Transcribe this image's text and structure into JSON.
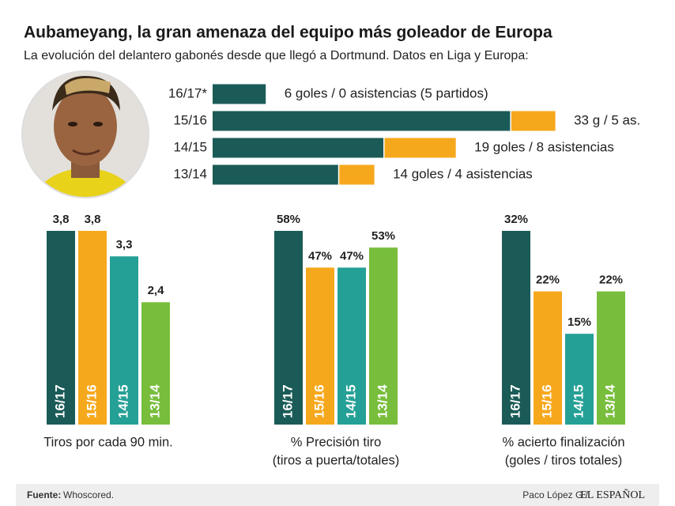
{
  "header": {
    "title": "Aubameyang, la gran amenaza del equipo más goleador de Europa",
    "subtitle": "La evolución del delantero gabonés desde que llegó a Dortmund. Datos en Liga y Europa:"
  },
  "chart_data": [
    {
      "type": "bar-stacked-horizontal",
      "categories": [
        "16/17*",
        "15/16",
        "14/15",
        "13/14"
      ],
      "series": [
        {
          "name": "goles",
          "color": "#1b5b57",
          "values": [
            6,
            33,
            19,
            14
          ]
        },
        {
          "name": "asistencias",
          "color": "#f6a81c",
          "values": [
            0,
            5,
            8,
            4
          ]
        }
      ],
      "value_labels": [
        "6 goles / 0 asistencias (5 partidos)",
        "33 g / 5 as.",
        "19 goles / 8 asistencias",
        "14 goles / 4 asistencias"
      ]
    },
    {
      "type": "bar",
      "label": [
        "Tiros por cada 90 min."
      ],
      "categories": [
        "16/17",
        "15/16",
        "14/15",
        "13/14"
      ],
      "colors": [
        "#1b5b57",
        "#f6a81c",
        "#25a096",
        "#78be3c"
      ],
      "values": [
        3.8,
        3.8,
        3.3,
        2.4
      ],
      "value_labels": [
        "3,8",
        "3,8",
        "3,3",
        "2,4"
      ]
    },
    {
      "type": "bar",
      "label": [
        "% Precisión tiro",
        "(tiros a puerta/totales)"
      ],
      "categories": [
        "16/17",
        "15/16",
        "14/15",
        "13/14"
      ],
      "colors": [
        "#1b5b57",
        "#f6a81c",
        "#25a096",
        "#78be3c"
      ],
      "values": [
        58,
        47,
        47,
        53
      ],
      "value_labels": [
        "58%",
        "47%",
        "47%",
        "53%"
      ]
    },
    {
      "type": "bar",
      "label": [
        "% acierto finalización",
        "(goles / tiros totales)"
      ],
      "categories": [
        "16/17",
        "15/16",
        "14/15",
        "13/14"
      ],
      "colors": [
        "#1b5b57",
        "#f6a81c",
        "#25a096",
        "#78be3c"
      ],
      "values": [
        32,
        22,
        15,
        22
      ],
      "value_labels": [
        "32%",
        "22%",
        "15%",
        "22%"
      ]
    }
  ],
  "footer": {
    "source_label": "Fuente:",
    "source": "Whoscored.",
    "author": "Paco López G /",
    "brand": "EL ESPAÑOL"
  }
}
